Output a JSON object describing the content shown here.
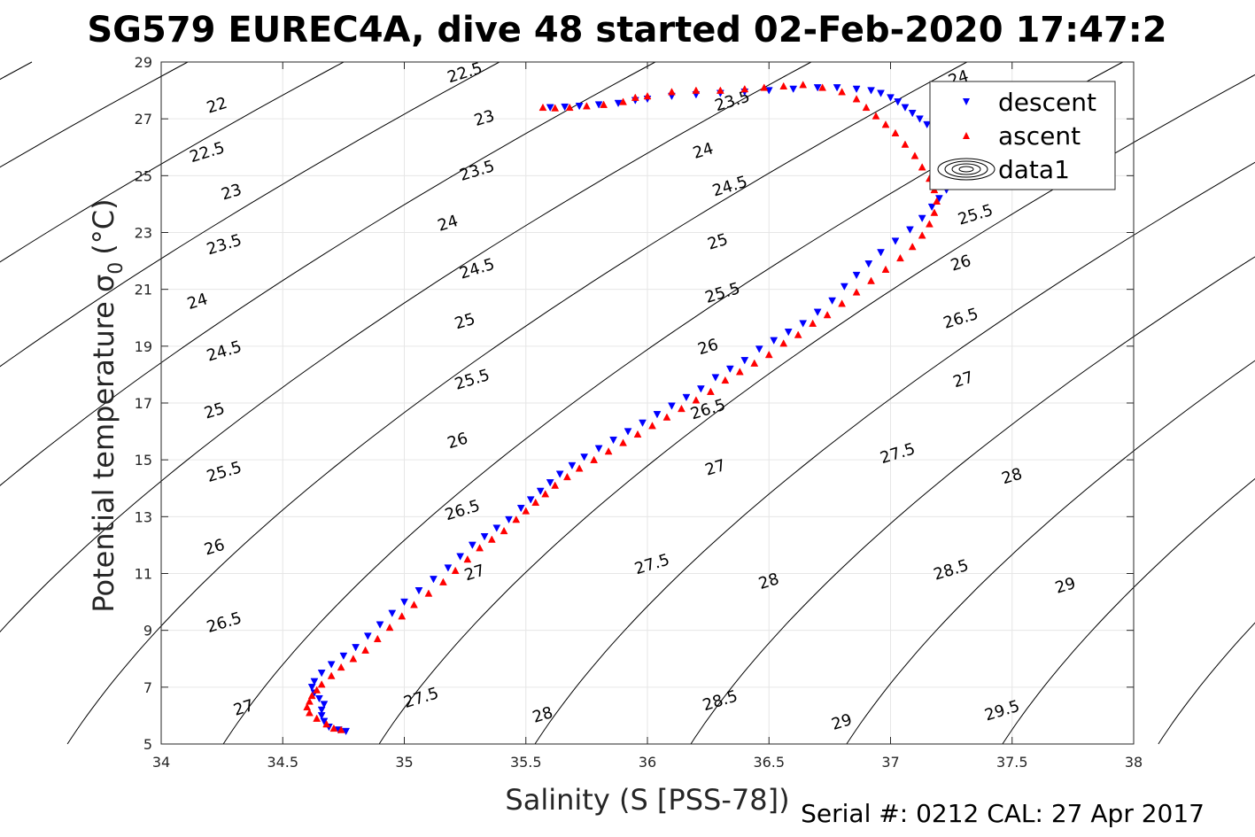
{
  "chart_data": {
    "type": "scatter",
    "title": "SG579 EUREC4A, dive 48 started 02-Feb-2020 17:47:2",
    "xlabel": "Salinity (S [PSS-78])",
    "ylabel_main": "Potential temperature σ",
    "ylabel_sub": "0",
    "ylabel_unit": "(°C)",
    "footer": "Serial #: 0212  CAL: 27 Apr 2017",
    "xlim": [
      34,
      38
    ],
    "ylim": [
      5,
      29
    ],
    "x_ticks": [
      34,
      34.5,
      35,
      35.5,
      36,
      36.5,
      37,
      37.5,
      38
    ],
    "x_tick_labels": [
      "34",
      "34.5",
      "35",
      "35.5",
      "36",
      "36.5",
      "37",
      "37.5",
      "38"
    ],
    "y_ticks": [
      5,
      7,
      9,
      11,
      13,
      15,
      17,
      19,
      21,
      23,
      25,
      27,
      29
    ],
    "y_tick_labels": [
      "5",
      "7",
      "9",
      "11",
      "13",
      "15",
      "17",
      "19",
      "21",
      "23",
      "25",
      "27",
      "29"
    ],
    "grid": true,
    "legend_position": "top-right",
    "legend": [
      {
        "label": "descent",
        "marker": "triangle-down",
        "color": "#0000ff"
      },
      {
        "label": "ascent",
        "marker": "triangle-up",
        "color": "#ff0000"
      },
      {
        "label": "data1",
        "marker": "contour",
        "color": "#000000"
      }
    ],
    "contour_levels": [
      22,
      22.5,
      23,
      23.5,
      24,
      24.5,
      25,
      25.5,
      26,
      26.5,
      27,
      27.5,
      28,
      28.5,
      29,
      29.5
    ],
    "contour_labels": [
      {
        "text": "22",
        "x": 34.23,
        "y": 27.45
      },
      {
        "text": "22.5",
        "x": 34.19,
        "y": 25.8
      },
      {
        "text": "23",
        "x": 34.29,
        "y": 24.4
      },
      {
        "text": "23.5",
        "x": 34.26,
        "y": 22.55
      },
      {
        "text": "24",
        "x": 34.15,
        "y": 20.55
      },
      {
        "text": "24.5",
        "x": 34.26,
        "y": 18.8
      },
      {
        "text": "25",
        "x": 34.22,
        "y": 16.7
      },
      {
        "text": "25.5",
        "x": 34.26,
        "y": 14.55
      },
      {
        "text": "26",
        "x": 34.22,
        "y": 11.9
      },
      {
        "text": "26.5",
        "x": 34.26,
        "y": 9.25
      },
      {
        "text": "27",
        "x": 34.34,
        "y": 6.25
      },
      {
        "text": "22.5",
        "x": 35.25,
        "y": 28.6
      },
      {
        "text": "23",
        "x": 35.33,
        "y": 27.0
      },
      {
        "text": "23.5",
        "x": 35.3,
        "y": 25.15
      },
      {
        "text": "24",
        "x": 35.18,
        "y": 23.3
      },
      {
        "text": "24.5",
        "x": 35.3,
        "y": 21.7
      },
      {
        "text": "25",
        "x": 35.25,
        "y": 19.85
      },
      {
        "text": "25.5",
        "x": 35.28,
        "y": 17.8
      },
      {
        "text": "26",
        "x": 35.22,
        "y": 15.65
      },
      {
        "text": "26.5",
        "x": 35.24,
        "y": 13.2
      },
      {
        "text": "27",
        "x": 35.29,
        "y": 11.0
      },
      {
        "text": "27.5",
        "x": 35.07,
        "y": 6.6
      },
      {
        "text": "23.5",
        "x": 36.35,
        "y": 27.6
      },
      {
        "text": "24",
        "x": 36.23,
        "y": 25.85
      },
      {
        "text": "24.5",
        "x": 36.34,
        "y": 24.6
      },
      {
        "text": "25",
        "x": 36.29,
        "y": 22.65
      },
      {
        "text": "25.5",
        "x": 36.31,
        "y": 20.85
      },
      {
        "text": "26",
        "x": 36.25,
        "y": 18.95
      },
      {
        "text": "26.5",
        "x": 36.25,
        "y": 16.75
      },
      {
        "text": "27",
        "x": 36.28,
        "y": 14.7
      },
      {
        "text": "27.5",
        "x": 36.02,
        "y": 11.3
      },
      {
        "text": "28",
        "x": 35.57,
        "y": 6.0
      },
      {
        "text": "24",
        "x": 37.28,
        "y": 28.4
      },
      {
        "text": "25.5",
        "x": 37.35,
        "y": 23.6
      },
      {
        "text": "26",
        "x": 37.29,
        "y": 21.9
      },
      {
        "text": "26.5",
        "x": 37.29,
        "y": 19.95
      },
      {
        "text": "27",
        "x": 37.3,
        "y": 17.8
      },
      {
        "text": "27.5",
        "x": 37.03,
        "y": 15.2
      },
      {
        "text": "28",
        "x": 36.5,
        "y": 10.7
      },
      {
        "text": "28.5",
        "x": 36.3,
        "y": 6.5
      },
      {
        "text": "28",
        "x": 37.5,
        "y": 14.4
      },
      {
        "text": "28.5",
        "x": 37.25,
        "y": 11.1
      },
      {
        "text": "29",
        "x": 36.8,
        "y": 5.75
      },
      {
        "text": "29",
        "x": 37.72,
        "y": 10.55
      },
      {
        "text": "29.5",
        "x": 37.46,
        "y": 6.15
      }
    ],
    "series": [
      {
        "name": "descent",
        "x": [
          34.76,
          34.73,
          34.69,
          34.67,
          34.66,
          34.66,
          34.67,
          34.65,
          34.63,
          34.62,
          34.63,
          34.66,
          34.7,
          34.75,
          34.8,
          34.85,
          34.9,
          34.95,
          35.0,
          35.06,
          35.12,
          35.18,
          35.23,
          35.28,
          35.33,
          35.38,
          35.43,
          35.48,
          35.52,
          35.56,
          35.6,
          35.64,
          35.69,
          35.74,
          35.8,
          35.86,
          35.92,
          35.98,
          36.04,
          36.1,
          36.16,
          36.22,
          36.28,
          36.34,
          36.4,
          36.46,
          36.52,
          36.58,
          36.64,
          36.7,
          36.76,
          36.81,
          36.86,
          36.91,
          36.96,
          37.02,
          37.08,
          37.13,
          37.17,
          37.2,
          37.23,
          37.25,
          37.26,
          37.24,
          37.22,
          37.2,
          37.18,
          37.15,
          37.12,
          37.09,
          37.06,
          37.03,
          37.0,
          36.96,
          36.92,
          36.86,
          36.78,
          36.7,
          36.6,
          36.5,
          36.4,
          36.3,
          36.2,
          36.1,
          36.0,
          35.95,
          35.88,
          35.8,
          35.72,
          35.66,
          35.6
        ],
        "y": [
          5.45,
          5.5,
          5.6,
          5.8,
          6.0,
          6.2,
          6.4,
          6.6,
          6.8,
          7.0,
          7.2,
          7.5,
          7.8,
          8.1,
          8.4,
          8.8,
          9.2,
          9.6,
          10.0,
          10.4,
          10.8,
          11.2,
          11.6,
          12.0,
          12.3,
          12.6,
          12.9,
          13.3,
          13.6,
          13.9,
          14.2,
          14.5,
          14.8,
          15.1,
          15.4,
          15.7,
          16.0,
          16.3,
          16.6,
          16.9,
          17.2,
          17.5,
          17.9,
          18.2,
          18.5,
          18.9,
          19.2,
          19.5,
          19.8,
          20.2,
          20.6,
          21.1,
          21.5,
          21.9,
          22.3,
          22.7,
          23.1,
          23.5,
          23.9,
          24.2,
          24.5,
          24.9,
          25.3,
          25.6,
          25.9,
          26.2,
          26.5,
          26.8,
          27.0,
          27.2,
          27.4,
          27.6,
          27.75,
          27.9,
          28.0,
          28.05,
          28.1,
          28.1,
          28.05,
          28.0,
          27.95,
          27.9,
          27.85,
          27.8,
          27.7,
          27.65,
          27.55,
          27.5,
          27.45,
          27.42,
          27.4
        ]
      },
      {
        "name": "ascent",
        "x": [
          34.74,
          34.71,
          34.68,
          34.64,
          34.61,
          34.6,
          34.61,
          34.62,
          34.64,
          34.66,
          34.7,
          34.74,
          34.79,
          34.84,
          34.89,
          34.94,
          34.99,
          35.04,
          35.1,
          35.16,
          35.21,
          35.26,
          35.31,
          35.36,
          35.41,
          35.46,
          35.5,
          35.54,
          35.58,
          35.62,
          35.67,
          35.72,
          35.78,
          35.84,
          35.9,
          35.96,
          36.02,
          36.08,
          36.14,
          36.2,
          36.26,
          36.32,
          36.38,
          36.44,
          36.5,
          36.56,
          36.62,
          36.68,
          36.74,
          36.8,
          36.86,
          36.92,
          36.98,
          37.04,
          37.09,
          37.13,
          37.16,
          37.18,
          37.19,
          37.18,
          37.16,
          37.13,
          37.1,
          37.06,
          37.02,
          36.98,
          36.94,
          36.9,
          36.86,
          36.8,
          36.72,
          36.64,
          36.56,
          36.48,
          36.4,
          36.3,
          36.2,
          36.1,
          36.0,
          35.95,
          35.9,
          35.82,
          35.75,
          35.68,
          35.62,
          35.57
        ],
        "y": [
          5.5,
          5.55,
          5.7,
          5.9,
          6.1,
          6.3,
          6.5,
          6.7,
          6.9,
          7.1,
          7.4,
          7.7,
          8.0,
          8.3,
          8.7,
          9.1,
          9.5,
          9.9,
          10.3,
          10.7,
          11.1,
          11.5,
          11.9,
          12.2,
          12.5,
          12.9,
          13.2,
          13.5,
          13.8,
          14.1,
          14.4,
          14.7,
          15.0,
          15.3,
          15.6,
          15.9,
          16.2,
          16.5,
          16.8,
          17.1,
          17.4,
          17.8,
          18.1,
          18.4,
          18.7,
          19.1,
          19.4,
          19.8,
          20.1,
          20.5,
          20.9,
          21.3,
          21.7,
          22.1,
          22.5,
          22.9,
          23.3,
          23.7,
          24.1,
          24.5,
          24.9,
          25.3,
          25.7,
          26.1,
          26.5,
          26.8,
          27.1,
          27.4,
          27.7,
          27.95,
          28.1,
          28.2,
          28.15,
          28.1,
          28.05,
          28.0,
          28.0,
          27.95,
          27.8,
          27.75,
          27.6,
          27.5,
          27.45,
          27.4,
          27.38,
          27.4
        ]
      }
    ]
  }
}
